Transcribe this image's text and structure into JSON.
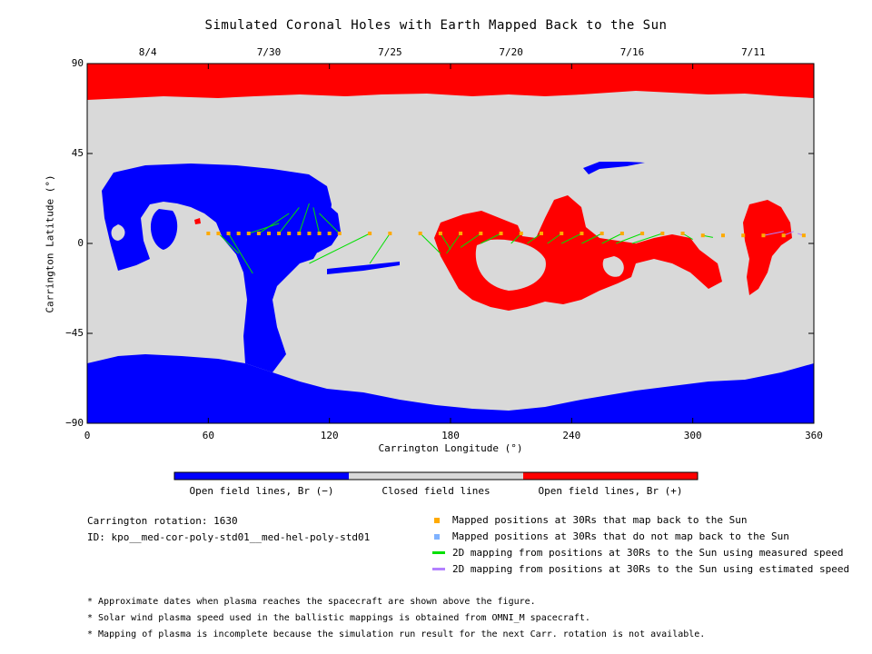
{
  "title": "Simulated Coronal Holes with Earth Mapped Back to the Sun",
  "chart_data": {
    "type": "map",
    "xlabel": "Carrington Longitude (°)",
    "ylabel": "Carrington Latitude (°)",
    "xlim": [
      0,
      360
    ],
    "ylim": [
      -90,
      90
    ],
    "x_ticks": [
      "0",
      "60",
      "120",
      "180",
      "240",
      "300",
      "360"
    ],
    "x_tick_values": [
      0,
      60,
      120,
      180,
      240,
      300,
      360
    ],
    "y_ticks": [
      "90",
      "45",
      "0",
      "−45",
      "−90"
    ],
    "y_tick_values": [
      90,
      45,
      0,
      -45,
      -90
    ],
    "top_date_labels": [
      "8/4",
      "7/30",
      "7/25",
      "7/20",
      "7/16",
      "7/11"
    ],
    "top_date_longitudes": [
      30,
      90,
      150,
      210,
      270,
      330
    ],
    "mapped_positions": [
      [
        60,
        5
      ],
      [
        65,
        5
      ],
      [
        70,
        5
      ],
      [
        75,
        5
      ],
      [
        80,
        5
      ],
      [
        85,
        5
      ],
      [
        90,
        5
      ],
      [
        95,
        5
      ],
      [
        100,
        5
      ],
      [
        105,
        5
      ],
      [
        110,
        5
      ],
      [
        115,
        5
      ],
      [
        120,
        5
      ],
      [
        125,
        5
      ],
      [
        140,
        5
      ],
      [
        150,
        5
      ],
      [
        165,
        5
      ],
      [
        175,
        5
      ],
      [
        185,
        5
      ],
      [
        195,
        5
      ],
      [
        205,
        5
      ],
      [
        215,
        5
      ],
      [
        225,
        5
      ],
      [
        235,
        5
      ],
      [
        245,
        5
      ],
      [
        255,
        5
      ],
      [
        265,
        5
      ],
      [
        275,
        5
      ],
      [
        285,
        5
      ],
      [
        295,
        5
      ],
      [
        305,
        4
      ],
      [
        315,
        4
      ],
      [
        325,
        4
      ],
      [
        335,
        4
      ],
      [
        345,
        4
      ],
      [
        355,
        4
      ]
    ],
    "measured_speed_mappings": [
      [
        [
          65,
          5
        ],
        [
          75,
          -5
        ]
      ],
      [
        [
          70,
          5
        ],
        [
          82,
          -15
        ]
      ],
      [
        [
          80,
          5
        ],
        [
          95,
          10
        ]
      ],
      [
        [
          85,
          5
        ],
        [
          100,
          15
        ]
      ],
      [
        [
          95,
          5
        ],
        [
          105,
          18
        ]
      ],
      [
        [
          105,
          5
        ],
        [
          110,
          20
        ]
      ],
      [
        [
          115,
          5
        ],
        [
          112,
          18
        ]
      ],
      [
        [
          125,
          5
        ],
        [
          115,
          15
        ]
      ],
      [
        [
          140,
          5
        ],
        [
          110,
          -10
        ]
      ],
      [
        [
          150,
          5
        ],
        [
          140,
          -10
        ]
      ],
      [
        [
          165,
          5
        ],
        [
          175,
          -5
        ]
      ],
      [
        [
          175,
          5
        ],
        [
          180,
          -3
        ]
      ],
      [
        [
          185,
          5
        ],
        [
          178,
          -5
        ]
      ],
      [
        [
          195,
          5
        ],
        [
          185,
          -2
        ]
      ],
      [
        [
          205,
          5
        ],
        [
          195,
          0
        ]
      ],
      [
        [
          215,
          5
        ],
        [
          210,
          0
        ]
      ],
      [
        [
          225,
          5
        ],
        [
          218,
          0
        ]
      ],
      [
        [
          235,
          5
        ],
        [
          228,
          0
        ]
      ],
      [
        [
          245,
          5
        ],
        [
          235,
          0
        ]
      ],
      [
        [
          255,
          5
        ],
        [
          245,
          0
        ]
      ],
      [
        [
          265,
          5
        ],
        [
          255,
          0
        ]
      ],
      [
        [
          275,
          5
        ],
        [
          262,
          0
        ]
      ],
      [
        [
          285,
          5
        ],
        [
          270,
          0
        ]
      ],
      [
        [
          295,
          5
        ],
        [
          300,
          2
        ]
      ],
      [
        [
          305,
          4
        ],
        [
          310,
          3
        ]
      ]
    ],
    "estimated_speed_mappings": [
      [
        [
          335,
          4
        ],
        [
          345,
          6
        ]
      ],
      [
        [
          345,
          4
        ],
        [
          350,
          6
        ]
      ],
      [
        [
          355,
          4
        ],
        [
          352,
          5
        ]
      ]
    ],
    "colorbar": {
      "labels": [
        "Open field lines, Br (−)",
        "Closed field lines",
        "Open field lines, Br (+)"
      ],
      "colors": [
        "#0000ff",
        "#d9d9d9",
        "#ff0000"
      ]
    }
  },
  "info": {
    "carrington_rotation": "Carrington rotation: 1630",
    "id": "ID: kpo__med-cor-poly-std01__med-hel-poly-std01"
  },
  "legend": [
    {
      "label": "Mapped positions at 30Rs that map back to the Sun",
      "color": "#ffaa00",
      "kind": "square"
    },
    {
      "label": "Mapped positions at 30Rs that do not map back to the Sun",
      "color": "#7fb2ff",
      "kind": "square"
    },
    {
      "label": "2D mapping from positions at 30Rs to the Sun using measured speed",
      "color": "#00e000",
      "kind": "line"
    },
    {
      "label": "2D mapping from positions at 30Rs to the Sun using estimated speed",
      "color": "#b380ff",
      "kind": "line"
    }
  ],
  "footnotes": [
    "* Approximate dates when plasma reaches the spacecraft are shown above the figure.",
    "* Solar wind plasma speed used in the ballistic mappings is obtained from OMNI_M spacecraft.",
    "* Mapping of plasma is incomplete because the simulation run result for the next Carr. rotation is not available."
  ]
}
